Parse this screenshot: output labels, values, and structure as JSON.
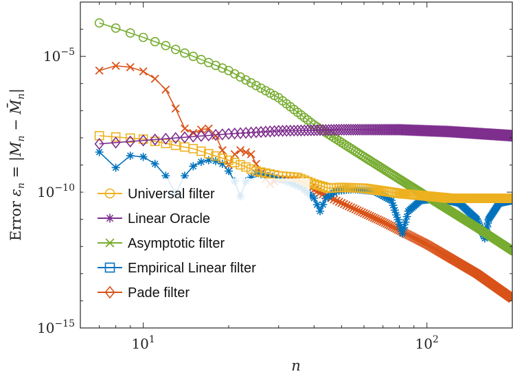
{
  "chart_data": {
    "type": "line",
    "xscale": "log",
    "yscale": "log",
    "xlim": [
      6,
      200
    ],
    "ylim": [
      1e-15,
      0.001
    ],
    "grid": false,
    "legend_position": "bottom-left",
    "xlabel": "n",
    "ylabel": "Error ε_n = |M_n − M̄_n|",
    "x_ticks": [
      {
        "value": 10,
        "label_base": "10",
        "label_exp": "1"
      },
      {
        "value": 100,
        "label_base": "10",
        "label_exp": "2"
      }
    ],
    "y_ticks": [
      {
        "value": 1e-05,
        "label_base": "10",
        "label_exp": "−5"
      },
      {
        "value": 1e-10,
        "label_base": "10",
        "label_exp": "−10"
      },
      {
        "value": 1e-15,
        "label_base": "10",
        "label_exp": "−15"
      }
    ],
    "n_range": [
      7,
      200
    ],
    "series": [
      {
        "name": "Universal filter",
        "legend_color": "#EDB120",
        "legend_marker": "circle",
        "plot_color": "#77AC30",
        "plot_marker": "circle",
        "points": [
          [
            7,
            0.00017
          ],
          [
            8,
            0.00011
          ],
          [
            10,
            5e-05
          ],
          [
            12,
            2.5e-05
          ],
          [
            15,
            1e-05
          ],
          [
            20,
            3e-06
          ],
          [
            30,
            3e-07
          ],
          [
            40,
            3e-08
          ],
          [
            60,
            2e-09
          ],
          [
            100,
            7e-11
          ],
          [
            150,
            5e-12
          ],
          [
            200,
            7e-13
          ]
        ]
      },
      {
        "name": "Linear Oracle",
        "legend_color": "#7E2F8E",
        "legend_marker": "star",
        "plot_color": "#0072BD",
        "plot_marker": "star",
        "points": [
          [
            7,
            3e-09
          ],
          [
            8,
            8e-10
          ],
          [
            9,
            2.2e-09
          ],
          [
            10,
            2e-09
          ],
          [
            11,
            1.1e-09
          ],
          [
            12,
            4e-10
          ],
          [
            13,
            9e-11
          ],
          [
            14,
            4e-10
          ],
          [
            15,
            9e-10
          ],
          [
            16,
            1.3e-09
          ],
          [
            17,
            1.5e-09
          ],
          [
            18,
            1.4e-09
          ],
          [
            19,
            1.1e-09
          ],
          [
            20,
            6e-10
          ],
          [
            21,
            2.5e-10
          ],
          [
            22,
            7e-11
          ],
          [
            23,
            2.5e-10
          ],
          [
            25,
            5e-10
          ],
          [
            28,
            4e-10
          ],
          [
            32,
            2.5e-10
          ],
          [
            36,
            1.5e-10
          ],
          [
            40,
            6e-11
          ],
          [
            42,
            2e-11
          ],
          [
            44,
            6e-11
          ],
          [
            48,
            1.1e-10
          ],
          [
            55,
            1.3e-10
          ],
          [
            65,
            1.1e-10
          ],
          [
            75,
            5e-11
          ],
          [
            82,
            3e-12
          ],
          [
            86,
            2e-11
          ],
          [
            95,
            5e-11
          ],
          [
            110,
            6e-11
          ],
          [
            130,
            4e-11
          ],
          [
            150,
            1e-11
          ],
          [
            160,
            2e-12
          ],
          [
            165,
            1e-11
          ],
          [
            180,
            4e-11
          ],
          [
            200,
            5e-11
          ]
        ]
      },
      {
        "name": "Asymptotic filter",
        "legend_color": "#77AC30",
        "legend_marker": "x",
        "plot_color": "#D95319",
        "plot_marker": "x",
        "points": [
          [
            7,
            3e-06
          ],
          [
            8,
            4.5e-06
          ],
          [
            9,
            4e-06
          ],
          [
            10,
            2.8e-06
          ],
          [
            11,
            1.5e-06
          ],
          [
            12,
            6e-07
          ],
          [
            13,
            1.2e-07
          ],
          [
            14,
            2.2e-08
          ],
          [
            15,
            1.5e-08
          ],
          [
            16,
            2e-08
          ],
          [
            17,
            2.2e-08
          ],
          [
            18,
            1.2e-08
          ],
          [
            19,
            3.5e-09
          ],
          [
            20,
            1e-09
          ],
          [
            21,
            2.5e-09
          ],
          [
            22,
            3.5e-09
          ],
          [
            24,
            2.5e-09
          ],
          [
            26,
            5e-10
          ],
          [
            28,
            2e-10
          ],
          [
            30,
            3e-10
          ],
          [
            35,
            3e-10
          ],
          [
            40,
            1.2e-10
          ],
          [
            50,
            4e-11
          ],
          [
            70,
            8e-12
          ],
          [
            100,
            1.2e-12
          ],
          [
            150,
            1e-13
          ],
          [
            200,
            1.2e-14
          ]
        ]
      },
      {
        "name": "Empirical Linear filter",
        "legend_color": "#0072BD",
        "legend_marker": "square",
        "plot_color": "#EDB120",
        "plot_marker": "square",
        "points": [
          [
            7,
            1.2e-08
          ],
          [
            10,
            9e-09
          ],
          [
            15,
            4e-09
          ],
          [
            20,
            1.5e-09
          ],
          [
            25,
            6e-10
          ],
          [
            30,
            4e-10
          ],
          [
            35,
            3.5e-10
          ],
          [
            40,
            2e-10
          ],
          [
            45,
            1.4e-10
          ],
          [
            50,
            1.5e-10
          ],
          [
            60,
            1.4e-10
          ],
          [
            80,
            9e-11
          ],
          [
            120,
            6e-11
          ],
          [
            200,
            6e-11
          ]
        ]
      },
      {
        "name": "Pade filter",
        "legend_color": "#D95319",
        "legend_marker": "diamond",
        "plot_color": "#7E2F8E",
        "plot_marker": "diamond",
        "points": [
          [
            7,
            6e-09
          ],
          [
            10,
            8e-09
          ],
          [
            20,
            1.4e-08
          ],
          [
            30,
            1.8e-08
          ],
          [
            50,
            2e-08
          ],
          [
            80,
            2e-08
          ],
          [
            120,
            1.7e-08
          ],
          [
            200,
            1.2e-08
          ]
        ]
      }
    ]
  }
}
